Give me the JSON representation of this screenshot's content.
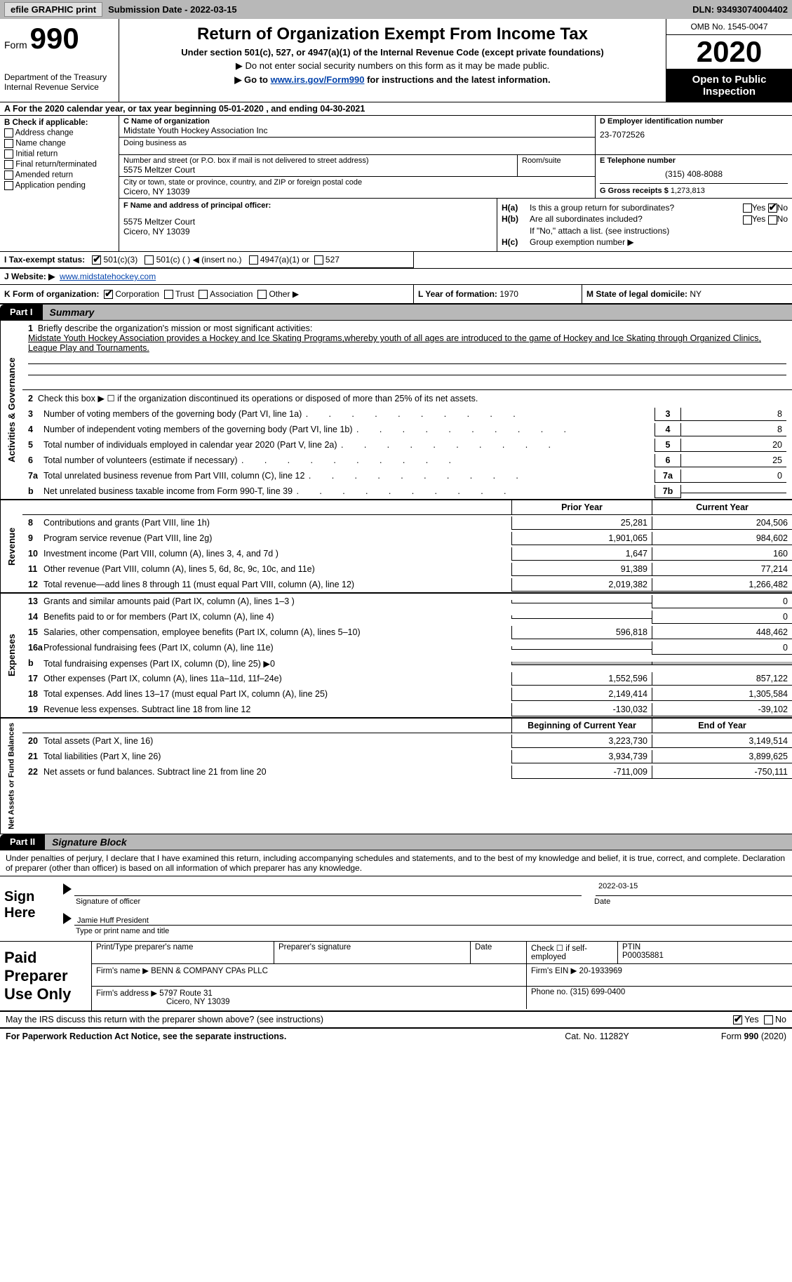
{
  "colors": {
    "header_gray": "#b8b8b8",
    "black": "#000000",
    "white": "#ffffff",
    "link": "#0645ad"
  },
  "topbar": {
    "efile_btn": "efile GRAPHIC print",
    "sub_date_lbl": "Submission Date - ",
    "sub_date_val": "2022-03-15",
    "dln_lbl": "DLN: ",
    "dln_val": "93493074004402"
  },
  "header": {
    "form_word": "Form",
    "form_num": "990",
    "dept1": "Department of the Treasury",
    "dept2": "Internal Revenue Service",
    "title": "Return of Organization Exempt From Income Tax",
    "subtitle": "Under section 501(c), 527, or 4947(a)(1) of the Internal Revenue Code (except private foundations)",
    "note1": "▶ Do not enter social security numbers on this form as it may be made public.",
    "note2_pre": "▶ Go to ",
    "note2_link": "www.irs.gov/Form990",
    "note2_post": " for instructions and the latest information.",
    "omb": "OMB No. 1545-0047",
    "year": "2020",
    "open1": "Open to Public",
    "open2": "Inspection"
  },
  "lineA": "A For the 2020 calendar year, or tax year beginning 05-01-2020   , and ending 04-30-2021",
  "boxB": {
    "label": "B Check if applicable:",
    "items": [
      "Address change",
      "Name change",
      "Initial return",
      "Final return/terminated",
      "Amended return",
      "Application pending"
    ]
  },
  "boxC": {
    "label": "C Name of organization",
    "name": "Midstate Youth Hockey Association Inc",
    "dba_lbl": "Doing business as"
  },
  "boxD": {
    "label": "D Employer identification number",
    "ein": "23-7072526"
  },
  "addr": {
    "street_lbl": "Number and street (or P.O. box if mail is not delivered to street address)",
    "street": "5575 Meltzer Court",
    "room_lbl": "Room/suite",
    "city_lbl": "City or town, state or province, country, and ZIP or foreign postal code",
    "city": "Cicero, NY  13039"
  },
  "boxE": {
    "label": "E Telephone number",
    "phone": "(315) 408-8088",
    "g_lbl": "G Gross receipts $ ",
    "g_val": "1,273,813"
  },
  "boxF": {
    "label": "F  Name and address of principal officer:",
    "line1": "5575 Meltzer Court",
    "line2": "Cicero, NY  13039"
  },
  "boxH": {
    "ha_lbl": "H(a)",
    "ha_txt": "Is this a group return for subordinates?",
    "hb_lbl": "H(b)",
    "hb_txt": "Are all subordinates included?",
    "h_note": "If \"No,\" attach a list. (see instructions)",
    "hc_lbl": "H(c)",
    "hc_txt": "Group exemption number ▶",
    "yes": "Yes",
    "no": "No"
  },
  "boxI": {
    "label": "I   Tax-exempt status:",
    "opts": [
      "501(c)(3)",
      "501(c) (  ) ◀ (insert no.)",
      "4947(a)(1) or",
      "527"
    ]
  },
  "boxJ": {
    "label": "J   Website: ▶",
    "url": "www.midstatehockey.com"
  },
  "boxK": {
    "label": "K Form of organization:",
    "opts": [
      "Corporation",
      "Trust",
      "Association",
      "Other ▶"
    ]
  },
  "boxL": {
    "label": "L Year of formation: ",
    "val": "1970"
  },
  "boxM": {
    "label": "M State of legal domicile: ",
    "val": "NY"
  },
  "part1": {
    "tab": "Part I",
    "title": "Summary",
    "q1_lbl": "1",
    "q1_txt": "Briefly describe the organization's mission or most significant activities:",
    "q1_val": "Midstate Youth Hockey Association provides a Hockey and Ice Skating Programs,whereby youth of all ages are introduced to the game of Hockey and Ice Skating through Organized Clinics, League Play and Tournaments.",
    "q2_lbl": "2",
    "q2_txt": "Check this box ▶ ☐  if the organization discontinued its operations or disposed of more than 25% of its net assets.",
    "gov_rows": [
      {
        "n": "3",
        "t": "Number of voting members of the governing body (Part VI, line 1a)",
        "box": "3",
        "v": "8"
      },
      {
        "n": "4",
        "t": "Number of independent voting members of the governing body (Part VI, line 1b)",
        "box": "4",
        "v": "8"
      },
      {
        "n": "5",
        "t": "Total number of individuals employed in calendar year 2020 (Part V, line 2a)",
        "box": "5",
        "v": "20"
      },
      {
        "n": "6",
        "t": "Total number of volunteers (estimate if necessary)",
        "box": "6",
        "v": "25"
      },
      {
        "n": "7a",
        "t": "Total unrelated business revenue from Part VIII, column (C), line 12",
        "box": "7a",
        "v": "0"
      },
      {
        "n": "b",
        "t": "Net unrelated business taxable income from Form 990-T, line 39",
        "box": "7b",
        "v": ""
      }
    ],
    "col_prior": "Prior Year",
    "col_current": "Current Year",
    "rev_rows": [
      {
        "n": "8",
        "t": "Contributions and grants (Part VIII, line 1h)",
        "p": "25,281",
        "c": "204,506"
      },
      {
        "n": "9",
        "t": "Program service revenue (Part VIII, line 2g)",
        "p": "1,901,065",
        "c": "984,602"
      },
      {
        "n": "10",
        "t": "Investment income (Part VIII, column (A), lines 3, 4, and 7d )",
        "p": "1,647",
        "c": "160"
      },
      {
        "n": "11",
        "t": "Other revenue (Part VIII, column (A), lines 5, 6d, 8c, 9c, 10c, and 11e)",
        "p": "91,389",
        "c": "77,214"
      },
      {
        "n": "12",
        "t": "Total revenue—add lines 8 through 11 (must equal Part VIII, column (A), line 12)",
        "p": "2,019,382",
        "c": "1,266,482"
      }
    ],
    "exp_rows": [
      {
        "n": "13",
        "t": "Grants and similar amounts paid (Part IX, column (A), lines 1–3 )",
        "p": "",
        "c": "0"
      },
      {
        "n": "14",
        "t": "Benefits paid to or for members (Part IX, column (A), line 4)",
        "p": "",
        "c": "0"
      },
      {
        "n": "15",
        "t": "Salaries, other compensation, employee benefits (Part IX, column (A), lines 5–10)",
        "p": "596,818",
        "c": "448,462"
      },
      {
        "n": "16a",
        "t": "Professional fundraising fees (Part IX, column (A), line 11e)",
        "p": "",
        "c": "0"
      },
      {
        "n": "b",
        "t": "Total fundraising expenses (Part IX, column (D), line 25) ▶0",
        "p": "SHADE",
        "c": "SHADE"
      },
      {
        "n": "17",
        "t": "Other expenses (Part IX, column (A), lines 11a–11d, 11f–24e)",
        "p": "1,552,596",
        "c": "857,122"
      },
      {
        "n": "18",
        "t": "Total expenses. Add lines 13–17 (must equal Part IX, column (A), line 25)",
        "p": "2,149,414",
        "c": "1,305,584"
      },
      {
        "n": "19",
        "t": "Revenue less expenses. Subtract line 18 from line 12",
        "p": "-130,032",
        "c": "-39,102"
      }
    ],
    "col_begin": "Beginning of Current Year",
    "col_end": "End of Year",
    "net_rows": [
      {
        "n": "20",
        "t": "Total assets (Part X, line 16)",
        "p": "3,223,730",
        "c": "3,149,514"
      },
      {
        "n": "21",
        "t": "Total liabilities (Part X, line 26)",
        "p": "3,934,739",
        "c": "3,899,625"
      },
      {
        "n": "22",
        "t": "Net assets or fund balances. Subtract line 21 from line 20",
        "p": "-711,009",
        "c": "-750,111"
      }
    ],
    "side_gov": "Activities & Governance",
    "side_rev": "Revenue",
    "side_exp": "Expenses",
    "side_net": "Net Assets or Fund Balances"
  },
  "part2": {
    "tab": "Part II",
    "title": "Signature Block",
    "decl": "Under penalties of perjury, I declare that I have examined this return, including accompanying schedules and statements, and to the best of my knowledge and belief, it is true, correct, and complete. Declaration of preparer (other than officer) is based on all information of which preparer has any knowledge."
  },
  "sign": {
    "label": "Sign Here",
    "sig_cap": "Signature of officer",
    "date_cap": "Date",
    "date_val": "2022-03-15",
    "name_val": "Jamie Huff  President",
    "name_cap": "Type or print name and title"
  },
  "prep": {
    "label": "Paid Preparer Use Only",
    "h_print": "Print/Type preparer's name",
    "h_sig": "Preparer's signature",
    "h_date": "Date",
    "h_check": "Check ☐ if self-employed",
    "h_ptin": "PTIN",
    "ptin": "P00035881",
    "firm_name_lbl": "Firm's name    ▶",
    "firm_name": "BENN & COMPANY CPAs PLLC",
    "firm_ein_lbl": "Firm's EIN ▶",
    "firm_ein": "20-1933969",
    "firm_addr_lbl": "Firm's address ▶",
    "firm_addr1": "5797 Route 31",
    "firm_addr2": "Cicero, NY  13039",
    "phone_lbl": "Phone no. ",
    "phone": "(315) 699-0400"
  },
  "discuss": {
    "txt": "May the IRS discuss this return with the preparer shown above? (see instructions)",
    "yes": "Yes",
    "no": "No"
  },
  "footer": {
    "left": "For Paperwork Reduction Act Notice, see the separate instructions.",
    "mid": "Cat. No. 11282Y",
    "right": "Form 990 (2020)"
  }
}
